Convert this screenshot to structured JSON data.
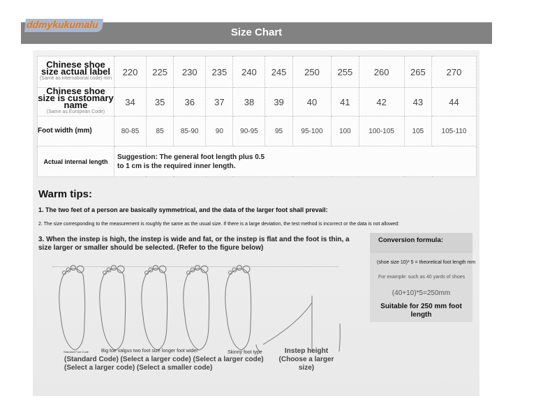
{
  "header": {
    "title": "Size Chart",
    "logo": "ddmykukumalu"
  },
  "table": {
    "row_labels": {
      "size_label": "Chinese shoe size actual label",
      "size_label_note": "(Same as international code) mm",
      "customary": "Chinese shoe size is customary name",
      "customary_note": "(Same as European Code)",
      "width": "Foot width (mm)",
      "internal": "Actual internal length"
    },
    "sizes_mm": [
      "220",
      "225",
      "230",
      "235",
      "240",
      "245",
      "250",
      "255",
      "260",
      "265",
      "270"
    ],
    "eu_sizes": [
      "34",
      "35",
      "36",
      "37",
      "38",
      "39",
      "40",
      "41",
      "42",
      "43",
      "44"
    ],
    "foot_width": [
      "80-85",
      "85",
      "85-90",
      "90",
      "90-95",
      "95",
      "95-100",
      "100",
      "100-105",
      "105",
      "105-110"
    ],
    "suggestion": "Suggestion: The general foot length plus 0.5 to 1 cm is the required inner length."
  },
  "tips": {
    "title": "Warm tips:",
    "tip1": "1. The two feet of a person are basically symmetrical, and the data of the larger foot shall prevail:",
    "tip2": "2. The size corresponding to the measurement is roughly the same as the usual size. If there is a large deviation, the test method is incorrect or the data is not allowed:",
    "tip3": "3. When the instep is high, the instep is wide and fat, or the instep is flat and the foot is thin, a size larger or smaller should be selected. (Refer to the figure below)"
  },
  "conversion": {
    "title": "Conversion formula:",
    "formula": "(shoe size 10)* 5 = theoretical foot length mm",
    "example": "For example: such as 40 yards of shoes",
    "calc": "(40+10)*5=250mm",
    "result": "Suitable for 250 mm foot length"
  },
  "figure": {
    "caption_small": "Standard Foot Code",
    "caption_types": "Big toe valgus two foot size longer foot wider",
    "caption_skinny": "Skinny foot type",
    "caption_line1": "(Standard Code) (Select a larger code) (Select a larger code)",
    "caption_line2": "(Select a larger code) (Select a smaller code)",
    "instep": "Instep height (Choose a larger size)"
  }
}
